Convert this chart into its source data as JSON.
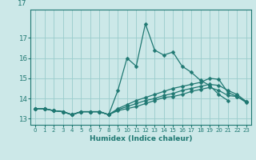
{
  "xlabel": "Humidex (Indice chaleur)",
  "bg_color": "#cce8e8",
  "grid_color": "#99cccc",
  "line_color": "#1f7872",
  "ylim": [
    12.7,
    18.4
  ],
  "yticks": [
    13,
    14,
    15,
    16,
    17
  ],
  "lines": [
    [
      13.5,
      13.5,
      13.4,
      13.35,
      13.2,
      13.35,
      13.35,
      13.35,
      13.2,
      14.4,
      16.0,
      15.6,
      17.7,
      16.4,
      16.15,
      16.3,
      15.6,
      15.3,
      14.9,
      14.65,
      14.2,
      13.9,
      null,
      null
    ],
    [
      13.5,
      13.5,
      13.4,
      13.35,
      13.2,
      13.35,
      13.35,
      13.35,
      13.2,
      13.4,
      13.5,
      13.6,
      13.75,
      13.9,
      14.05,
      14.1,
      14.2,
      14.35,
      14.45,
      14.55,
      14.4,
      14.15,
      14.1,
      13.8
    ],
    [
      13.5,
      13.5,
      13.4,
      13.35,
      13.2,
      13.35,
      13.35,
      13.35,
      13.2,
      13.45,
      13.6,
      13.75,
      13.9,
      14.0,
      14.15,
      14.25,
      14.4,
      14.5,
      14.6,
      14.7,
      14.65,
      14.4,
      14.2,
      13.85
    ],
    [
      13.5,
      13.5,
      13.4,
      13.35,
      13.2,
      13.35,
      13.35,
      13.35,
      13.2,
      13.5,
      13.7,
      13.9,
      14.05,
      14.2,
      14.35,
      14.5,
      14.6,
      14.7,
      14.8,
      15.0,
      14.95,
      14.3,
      14.1,
      13.85
    ]
  ],
  "markersize": 2.5,
  "linewidth": 0.9
}
